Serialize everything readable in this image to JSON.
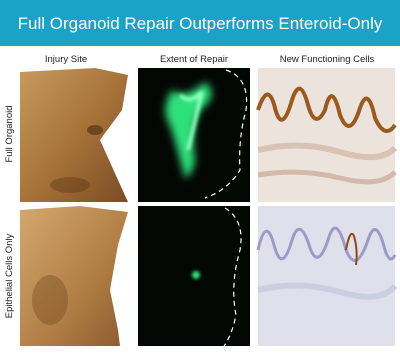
{
  "header": {
    "title": "Full Organoid Repair Outperforms Enteroid-Only"
  },
  "columns": [
    "Injury Site",
    "Extent of Repair",
    "New Functioning Cells"
  ],
  "rows": [
    "Full Organoid",
    "Epithelial Cells Only"
  ]
}
